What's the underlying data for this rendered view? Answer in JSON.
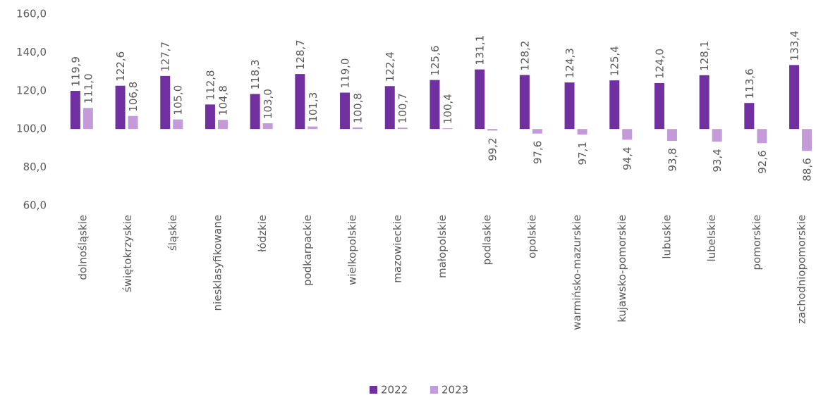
{
  "chart_data": {
    "type": "bar",
    "categories": [
      "dolnośląskie",
      "świętokrzyskie",
      "śląskie",
      "niesklasyfikowane",
      "łódzkie",
      "podkarpackie",
      "wielkopolskie",
      "mazowieckie",
      "małopolskie",
      "podlaskie",
      "opolskie",
      "warmińsko-mazurskie",
      "kujawsko-pomorskie",
      "lubuskie",
      "lubelskie",
      "pomorskie",
      "zachodniopomorskie"
    ],
    "series": [
      {
        "name": "2022",
        "color": "#7030a0",
        "values": [
          119.9,
          122.6,
          127.7,
          112.8,
          118.3,
          128.7,
          119.0,
          122.4,
          125.6,
          131.1,
          128.2,
          124.3,
          125.4,
          124.0,
          128.1,
          113.6,
          133.4
        ],
        "value_labels": [
          "119,9",
          "122,6",
          "127,7",
          "112,8",
          "118,3",
          "128,7",
          "119,0",
          "122,4",
          "125,6",
          "131,1",
          "128,2",
          "124,3",
          "125,4",
          "124,0",
          "128,1",
          "113,6",
          "133,4"
        ]
      },
      {
        "name": "2023",
        "color": "#c39bd9",
        "values": [
          111.0,
          106.8,
          105.0,
          104.8,
          103.0,
          101.3,
          100.8,
          100.7,
          100.4,
          99.2,
          97.6,
          97.1,
          94.4,
          93.8,
          93.4,
          92.6,
          88.6
        ],
        "value_labels": [
          "111,0",
          "106,8",
          "105,0",
          "104,8",
          "103,0",
          "101,3",
          "100,8",
          "100,7",
          "100,4",
          "99,2",
          "97,6",
          "97,1",
          "94,4",
          "93,8",
          "93,4",
          "92,6",
          "88,6"
        ]
      }
    ],
    "ylim": [
      60,
      160
    ],
    "yticks": [
      {
        "value": 60,
        "label": "60,0"
      },
      {
        "value": 80,
        "label": "80,0"
      },
      {
        "value": 100,
        "label": "100,0"
      },
      {
        "value": 120,
        "label": "120,0"
      },
      {
        "value": 140,
        "label": "140,0"
      },
      {
        "value": 160,
        "label": "160,0"
      }
    ],
    "bar_base": 100,
    "grid": false,
    "legend": "bottom"
  }
}
